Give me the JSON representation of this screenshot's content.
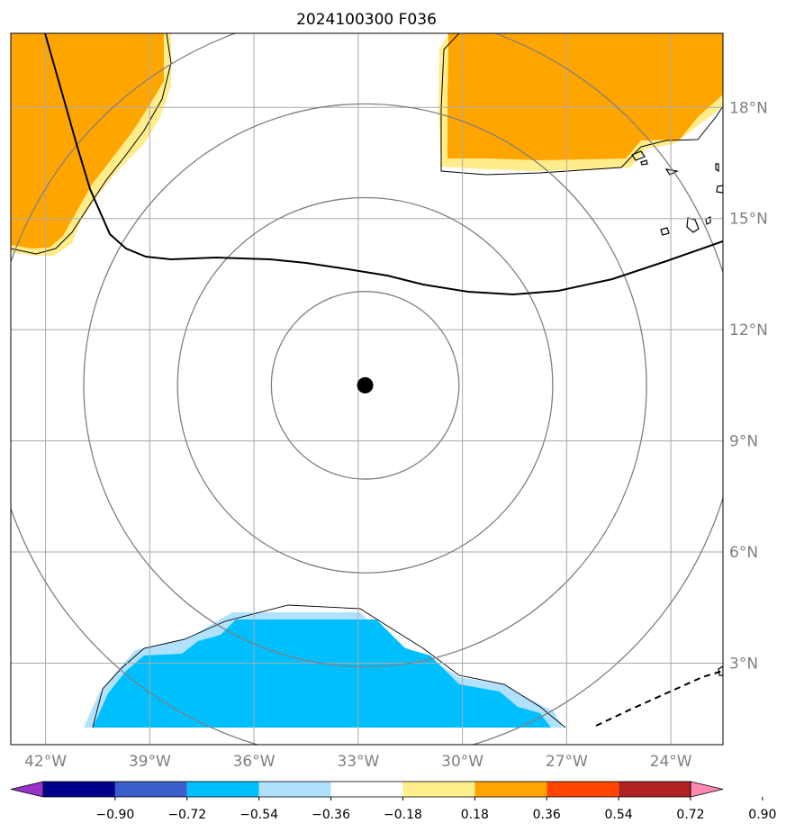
{
  "title": "2024100300 F036",
  "map": {
    "lon_range": [
      -43.0,
      -22.5
    ],
    "lat_range": [
      0.8,
      20.0
    ],
    "center_lon": -32.8,
    "center_lat": 10.5,
    "range_ring_radii_deg": [
      2.7,
      5.4,
      8.1,
      10.8
    ],
    "lon_ticks": [
      {
        "value": -42,
        "label": "42°W"
      },
      {
        "value": -39,
        "label": "39°W"
      },
      {
        "value": -36,
        "label": "36°W"
      },
      {
        "value": -33,
        "label": "33°W"
      },
      {
        "value": -30,
        "label": "30°W"
      },
      {
        "value": -27,
        "label": "27°W"
      },
      {
        "value": -24,
        "label": "24°W"
      }
    ],
    "lat_ticks": [
      {
        "value": 3,
        "label": "3°N"
      },
      {
        "value": 6,
        "label": "6°N"
      },
      {
        "value": 9,
        "label": "9°N"
      },
      {
        "value": 12,
        "label": "12°N"
      },
      {
        "value": 15,
        "label": "15°N"
      },
      {
        "value": 18,
        "label": "18°N"
      }
    ]
  },
  "colorbar": {
    "colors": [
      "#9932cc",
      "#00008b",
      "#3a5fcd",
      "#00bfff",
      "#b0e2ff",
      "#ffffff",
      "#fff08c",
      "#ffa500",
      "#ff4500",
      "#b22222",
      "#ff88b0"
    ],
    "tick_labels": [
      "−0.90",
      "−0.72",
      "−0.54",
      "−0.36",
      "−0.18",
      "0.18",
      "0.36",
      "0.54",
      "0.72",
      "0.90"
    ]
  },
  "colors": {
    "orange_fill": "#ffa500",
    "yellow_fill": "#ffec8b",
    "cyan_fill": "#00bfff",
    "lightblue_fill": "#b0e2ff",
    "grid": "#a9a9a9",
    "ring": "#808080",
    "center_marker": "#000000"
  }
}
